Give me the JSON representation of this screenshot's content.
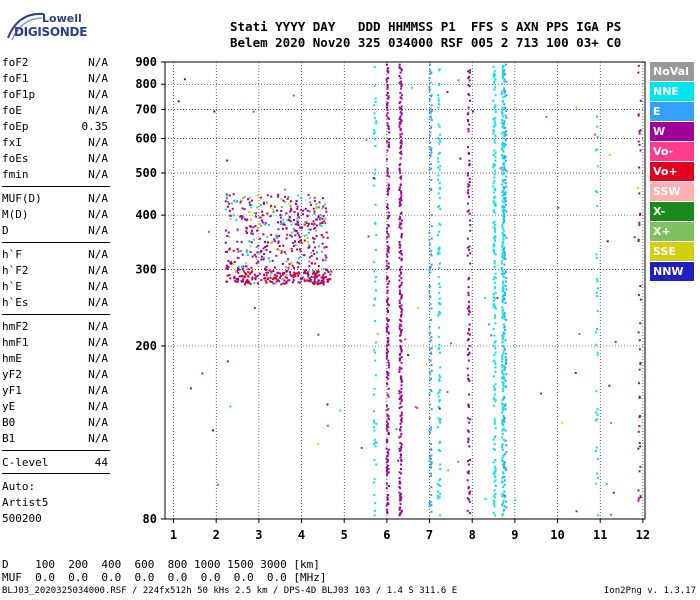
{
  "logo": {
    "line1": "Lowell",
    "line2": "DIGISONDE"
  },
  "header": {
    "line1": "Stati YYYY DAY   DDD HHMMSS P1  FFS S AXN PPS IGA PS",
    "line2": "Belem 2020 Nov20 325 034000 RSF 005 2 713 100 03+ C0"
  },
  "params": {
    "group1": [
      {
        "name": "foF2",
        "value": "N/A"
      },
      {
        "name": "foF1",
        "value": "N/A"
      },
      {
        "name": "foF1p",
        "value": "N/A"
      },
      {
        "name": "foE",
        "value": "N/A"
      },
      {
        "name": "foEp",
        "value": "0.35"
      },
      {
        "name": "fxI",
        "value": "N/A"
      },
      {
        "name": "foEs",
        "value": "N/A"
      },
      {
        "name": "fmin",
        "value": "N/A"
      }
    ],
    "group2": [
      {
        "name": "MUF(D)",
        "value": "N/A"
      },
      {
        "name": "M(D)",
        "value": "N/A"
      },
      {
        "name": "D",
        "value": "N/A"
      }
    ],
    "group3": [
      {
        "name": "h`F",
        "value": "N/A"
      },
      {
        "name": "h`F2",
        "value": "N/A"
      },
      {
        "name": "h`E",
        "value": "N/A"
      },
      {
        "name": "h`Es",
        "value": "N/A"
      }
    ],
    "group4": [
      {
        "name": "hmF2",
        "value": "N/A"
      },
      {
        "name": "hmF1",
        "value": "N/A"
      },
      {
        "name": "hmE",
        "value": "N/A"
      },
      {
        "name": "yF2",
        "value": "N/A"
      },
      {
        "name": "yF1",
        "value": "N/A"
      },
      {
        "name": "yE",
        "value": "N/A"
      },
      {
        "name": "B0",
        "value": "N/A"
      },
      {
        "name": "B1",
        "value": "N/A"
      }
    ],
    "clevel": {
      "name": "C-level",
      "value": "44"
    },
    "auto": [
      "Auto:",
      "Artist5",
      "500200"
    ]
  },
  "legend": [
    {
      "label": "NoVal",
      "color": "#999999"
    },
    {
      "label": "NNE",
      "color": "#00e5ee"
    },
    {
      "label": "E",
      "color": "#33a0ff"
    },
    {
      "label": "W",
      "color": "#a0009a"
    },
    {
      "label": "Vo-",
      "color": "#ff3c8c"
    },
    {
      "label": "Vo+",
      "color": "#e00020"
    },
    {
      "label": "SSW",
      "color": "#ffb0b0"
    },
    {
      "label": "X-",
      "color": "#1a8a1a"
    },
    {
      "label": "X+",
      "color": "#80c060"
    },
    {
      "label": "SSE",
      "color": "#d0d010"
    },
    {
      "label": "NNW",
      "color": "#2020c0"
    }
  ],
  "bottom": {
    "line1": "D    100  200  400  600  800 1000 1500 3000 [km]",
    "line2": "MUF  0.0  0.0  0.0  0.0  0.0  0.0  0.0  0.0 [MHz]"
  },
  "footer": "BLJ03_2020325034000.RSF / 224fx512h 50 kHs 2.5 km / DPS-4D BLJ03 103 / 1.4 S 311.6 E",
  "version": "Ion2Png v. 1.3.17",
  "chart_data": {
    "type": "scatter",
    "xticks": [
      1,
      2,
      3,
      4,
      5,
      6,
      7,
      8,
      9,
      10,
      11,
      12
    ],
    "yticks": [
      80,
      200,
      300,
      400,
      500,
      600,
      700,
      800,
      900
    ],
    "xlim": [
      0.8,
      12.05
    ],
    "ylim": [
      80,
      900
    ],
    "xunit": "MHz",
    "yunit": "km",
    "ylog": true,
    "grid": true
  }
}
